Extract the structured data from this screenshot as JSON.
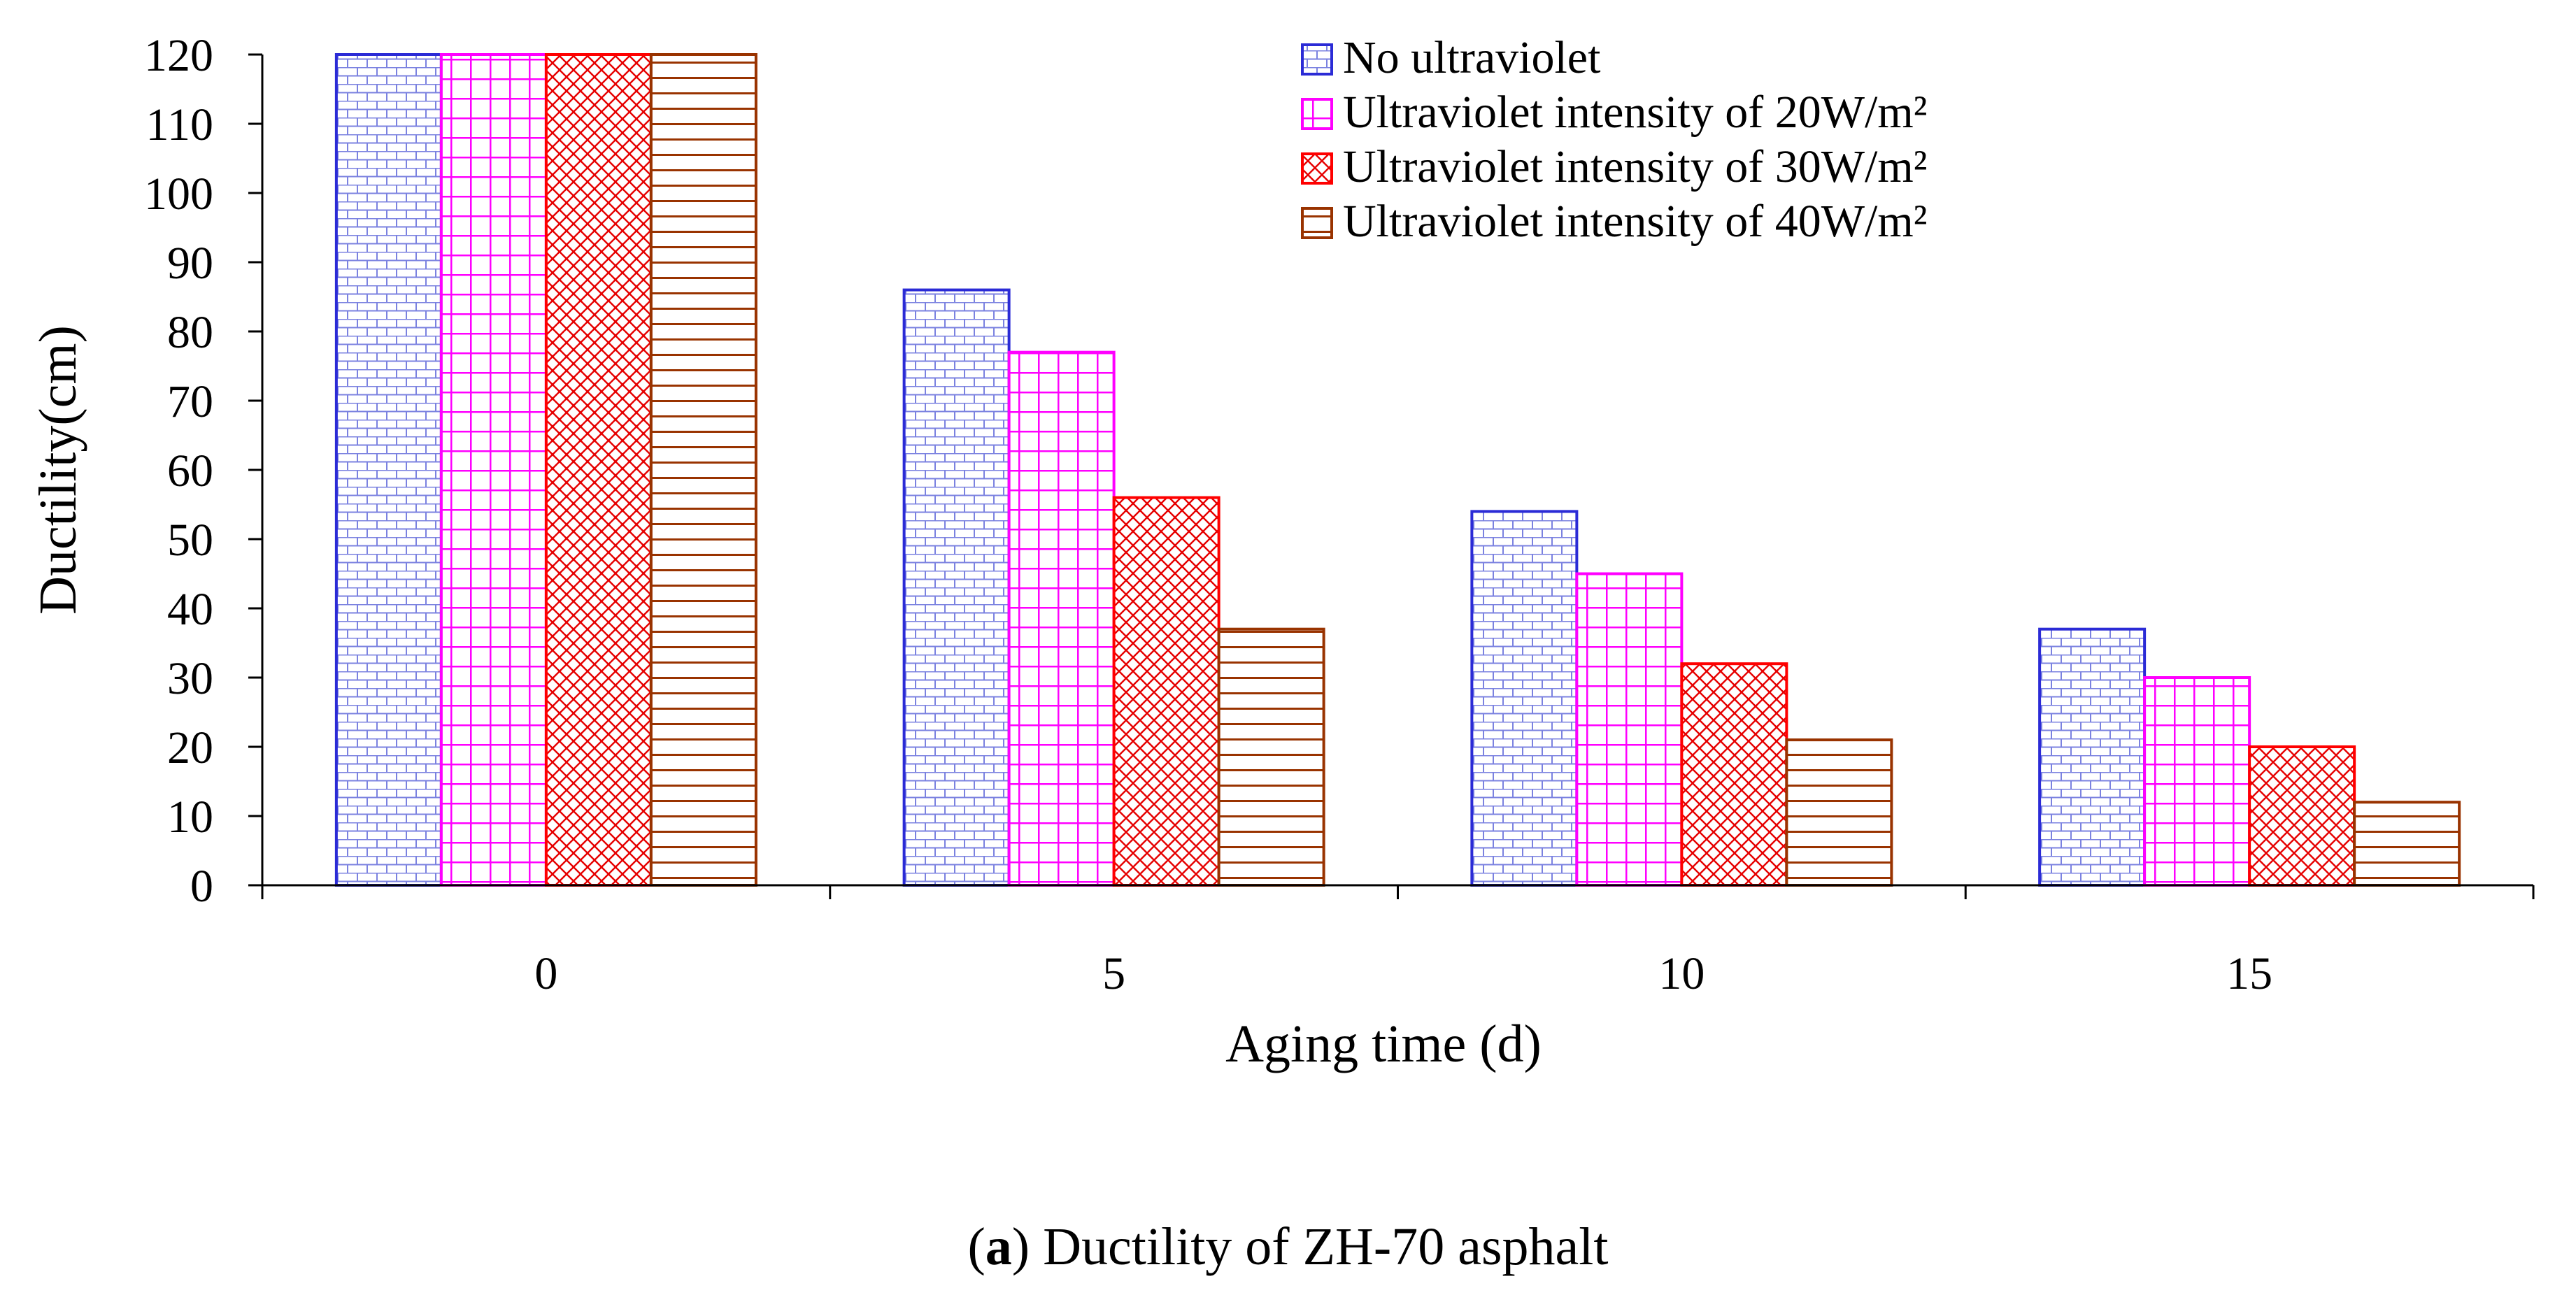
{
  "chart_data": {
    "type": "bar",
    "categories": [
      "0",
      "5",
      "10",
      "15"
    ],
    "series": [
      {
        "name": "No ultraviolet",
        "values": [
          120,
          86,
          54,
          37
        ],
        "color": "#2b2bd6",
        "pattern": "brick-blue"
      },
      {
        "name": "Ultraviolet intensity of 20W/m²",
        "values": [
          120,
          77,
          45,
          30
        ],
        "color": "#ff00ff",
        "pattern": "grid-magenta"
      },
      {
        "name": "Ultraviolet intensity of 30W/m²",
        "values": [
          120,
          56,
          32,
          20
        ],
        "color": "#ff0000",
        "pattern": "crosshatch-red"
      },
      {
        "name": "Ultraviolet intensity of 40W/m²",
        "values": [
          120,
          37,
          21,
          12
        ],
        "color": "#993300",
        "pattern": "horizontal-brown"
      }
    ],
    "xlabel": "Aging time (d)",
    "ylabel": "Ductility(cm)",
    "ylim": [
      0,
      120
    ],
    "yticks": [
      "0",
      "10",
      "20",
      "30",
      "40",
      "50",
      "60",
      "70",
      "80",
      "90",
      "100",
      "110",
      "120"
    ],
    "grid": false,
    "legend_position": "top-right"
  },
  "caption": {
    "label": "a",
    "text": "Ductility of ZH-70 asphalt"
  }
}
